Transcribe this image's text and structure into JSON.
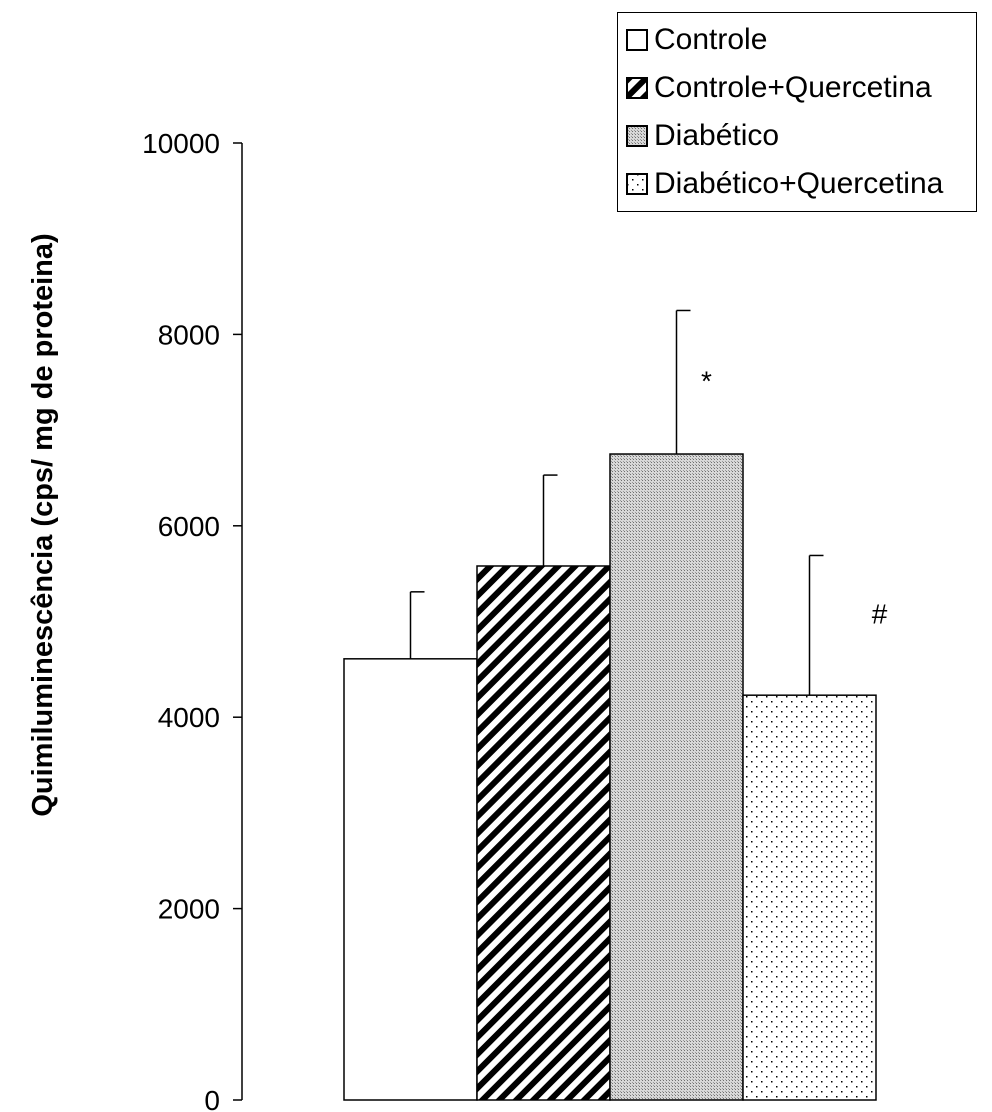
{
  "chart_data": {
    "type": "bar",
    "title": "",
    "xlabel": "",
    "ylabel": "Quimiluminescência (cps/ mg de proteina)",
    "ylim": [
      0,
      10000
    ],
    "yticks": [
      "0",
      "2000",
      "4000",
      "6000",
      "8000",
      "10000"
    ],
    "grid": false,
    "legend_position": "top-right",
    "series": [
      {
        "name": "Controle",
        "value": 4610,
        "error": 700,
        "pattern": "white",
        "annotation": ""
      },
      {
        "name": "Controle+Quercetina",
        "value": 5580,
        "error": 950,
        "pattern": "diagonal-stripes",
        "annotation": ""
      },
      {
        "name": "Diabético",
        "value": 6750,
        "error": 1500,
        "pattern": "fine-dots-gray",
        "annotation": "*"
      },
      {
        "name": "Diabético+Quercetina",
        "value": 4230,
        "error": 1460,
        "pattern": "sparse-dots",
        "annotation": "#"
      }
    ]
  },
  "legend": {
    "items": [
      "Controle",
      "Controle+Quercetina",
      "Diabético",
      "Diabético+Quercetina"
    ]
  }
}
